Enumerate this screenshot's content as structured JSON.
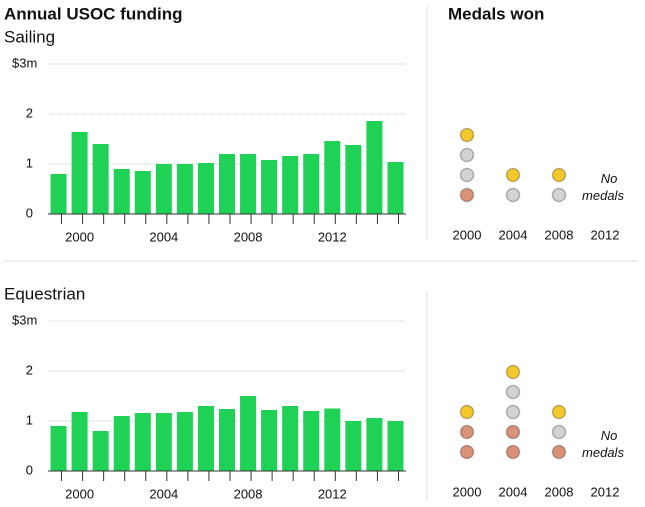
{
  "header": {
    "funding_title": "Annual USOC funding",
    "medals_title": "Medals won"
  },
  "chart_data": [
    {
      "type": "bar",
      "title": "Sailing",
      "color": "#1fd155",
      "categories": [
        null,
        "2000",
        null,
        null,
        null,
        "2004",
        null,
        null,
        null,
        "2008",
        null,
        null,
        null,
        "2012",
        null,
        null,
        null
      ],
      "values": [
        0.8,
        1.64,
        1.4,
        0.9,
        0.86,
        1.0,
        1.0,
        1.02,
        1.2,
        1.2,
        1.08,
        1.16,
        1.2,
        1.46,
        1.38,
        1.86,
        1.04
      ],
      "ylim": [
        0,
        3
      ],
      "yticks": [
        0,
        1,
        2,
        {
          "value": 3,
          "label": "$3m"
        }
      ],
      "grid": true
    },
    {
      "type": "dot",
      "categories": [
        "2000",
        "2004",
        "2008",
        "2012"
      ],
      "annotation": "No medals",
      "series": [
        {
          "color": "#d99277",
          "values": [
            1,
            0,
            0,
            0
          ]
        },
        {
          "color": "#d3d3d3",
          "values": [
            2,
            1,
            1,
            0
          ]
        },
        {
          "color": "#f4c82a",
          "values": [
            1,
            1,
            1,
            0
          ]
        }
      ]
    },
    {
      "type": "bar",
      "title": "Equestrian",
      "color": "#1fd155",
      "categories": [
        null,
        "2000",
        null,
        null,
        null,
        "2004",
        null,
        null,
        null,
        "2008",
        null,
        null,
        null,
        "2012",
        null,
        null,
        null
      ],
      "values": [
        0.9,
        1.18,
        0.8,
        1.1,
        1.16,
        1.16,
        1.18,
        1.3,
        1.24,
        1.5,
        1.22,
        1.3,
        1.2,
        1.25,
        1.0,
        1.06,
        1.0
      ],
      "ylim": [
        0,
        3
      ],
      "yticks": [
        0,
        1,
        2,
        {
          "value": 3,
          "label": "$3m"
        }
      ],
      "grid": true
    },
    {
      "type": "dot",
      "categories": [
        "2000",
        "2004",
        "2008",
        "2012"
      ],
      "annotation": "No medals",
      "series": [
        {
          "color": "#d99277",
          "values": [
            2,
            2,
            1,
            0
          ]
        },
        {
          "color": "#d3d3d3",
          "values": [
            0,
            2,
            1,
            0
          ]
        },
        {
          "color": "#f4c82a",
          "values": [
            1,
            1,
            1,
            0
          ]
        }
      ]
    }
  ]
}
